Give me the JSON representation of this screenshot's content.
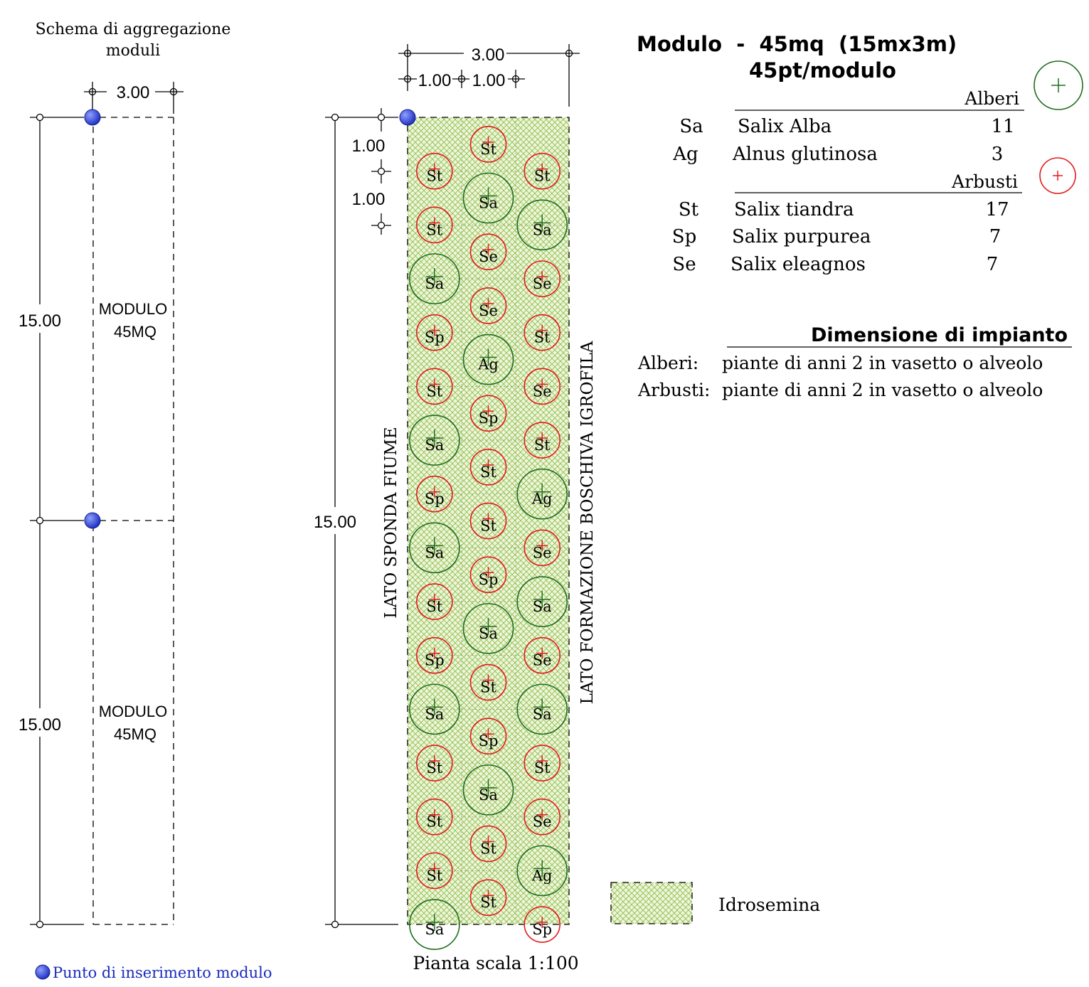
{
  "colors": {
    "tree": "#1e6e1e",
    "shrub": "#e31a1a",
    "insertion_point": "#2233cc",
    "hatch": "#8fbf4a",
    "hatch_bg": "#eef5dc",
    "line": "#000000"
  },
  "aggregation": {
    "title_line1": "Schema di aggregazione",
    "title_line2": "moduli",
    "width_dim": "3.00",
    "module_dims": [
      "15.00",
      "15.00"
    ],
    "module_label_line1": "MODULO",
    "module_label_line2": "45MQ"
  },
  "plan": {
    "dim_total": "3.00",
    "dim_col1": "1.00",
    "dim_col2": "1.00",
    "dim_row1": "1.00",
    "dim_row2": "1.00",
    "dim_length": "15.00",
    "side_left": "LATO SPONDA FIUME",
    "side_right": "LATO FORMAZIONE BOSCHIVA IGROFILA",
    "caption": "Pianta scala 1:100",
    "plants": [
      {
        "col": 1,
        "row": 0,
        "code": "St",
        "kind": "shrub"
      },
      {
        "col": 0,
        "row": 0.5,
        "code": "St",
        "kind": "shrub"
      },
      {
        "col": 2,
        "row": 0.5,
        "code": "St",
        "kind": "shrub"
      },
      {
        "col": 1,
        "row": 1,
        "code": "Sa",
        "kind": "tree"
      },
      {
        "col": 0,
        "row": 1.5,
        "code": "St",
        "kind": "shrub"
      },
      {
        "col": 2,
        "row": 1.5,
        "code": "Sa",
        "kind": "tree"
      },
      {
        "col": 1,
        "row": 2,
        "code": "Se",
        "kind": "shrub"
      },
      {
        "col": 0,
        "row": 2.5,
        "code": "Sa",
        "kind": "tree"
      },
      {
        "col": 2,
        "row": 2.5,
        "code": "Se",
        "kind": "shrub"
      },
      {
        "col": 1,
        "row": 3,
        "code": "Se",
        "kind": "shrub"
      },
      {
        "col": 0,
        "row": 3.5,
        "code": "Sp",
        "kind": "shrub"
      },
      {
        "col": 2,
        "row": 3.5,
        "code": "St",
        "kind": "shrub"
      },
      {
        "col": 1,
        "row": 4,
        "code": "Ag",
        "kind": "tree"
      },
      {
        "col": 0,
        "row": 4.5,
        "code": "St",
        "kind": "shrub"
      },
      {
        "col": 2,
        "row": 4.5,
        "code": "Se",
        "kind": "shrub"
      },
      {
        "col": 1,
        "row": 5,
        "code": "Sp",
        "kind": "shrub"
      },
      {
        "col": 0,
        "row": 5.5,
        "code": "Sa",
        "kind": "tree"
      },
      {
        "col": 2,
        "row": 5.5,
        "code": "St",
        "kind": "shrub"
      },
      {
        "col": 1,
        "row": 6,
        "code": "St",
        "kind": "shrub"
      },
      {
        "col": 0,
        "row": 6.5,
        "code": "Sp",
        "kind": "shrub"
      },
      {
        "col": 2,
        "row": 6.5,
        "code": "Ag",
        "kind": "tree"
      },
      {
        "col": 1,
        "row": 7,
        "code": "St",
        "kind": "shrub"
      },
      {
        "col": 0,
        "row": 7.5,
        "code": "Sa",
        "kind": "tree"
      },
      {
        "col": 2,
        "row": 7.5,
        "code": "Se",
        "kind": "shrub"
      },
      {
        "col": 1,
        "row": 8,
        "code": "Sp",
        "kind": "shrub"
      },
      {
        "col": 0,
        "row": 8.5,
        "code": "St",
        "kind": "shrub"
      },
      {
        "col": 2,
        "row": 8.5,
        "code": "Sa",
        "kind": "tree"
      },
      {
        "col": 1,
        "row": 9,
        "code": "Sa",
        "kind": "tree"
      },
      {
        "col": 0,
        "row": 9.5,
        "code": "Sp",
        "kind": "shrub"
      },
      {
        "col": 2,
        "row": 9.5,
        "code": "Se",
        "kind": "shrub"
      },
      {
        "col": 1,
        "row": 10,
        "code": "St",
        "kind": "shrub"
      },
      {
        "col": 0,
        "row": 10.5,
        "code": "Sa",
        "kind": "tree"
      },
      {
        "col": 2,
        "row": 10.5,
        "code": "Sa",
        "kind": "tree"
      },
      {
        "col": 1,
        "row": 11,
        "code": "Sp",
        "kind": "shrub"
      },
      {
        "col": 0,
        "row": 11.5,
        "code": "St",
        "kind": "shrub"
      },
      {
        "col": 2,
        "row": 11.5,
        "code": "St",
        "kind": "shrub"
      },
      {
        "col": 1,
        "row": 12,
        "code": "Sa",
        "kind": "tree"
      },
      {
        "col": 0,
        "row": 12.5,
        "code": "St",
        "kind": "shrub"
      },
      {
        "col": 2,
        "row": 12.5,
        "code": "Se",
        "kind": "shrub"
      },
      {
        "col": 1,
        "row": 13,
        "code": "St",
        "kind": "shrub"
      },
      {
        "col": 0,
        "row": 13.5,
        "code": "St",
        "kind": "shrub"
      },
      {
        "col": 2,
        "row": 13.5,
        "code": "Ag",
        "kind": "tree"
      },
      {
        "col": 1,
        "row": 14,
        "code": "St",
        "kind": "shrub"
      },
      {
        "col": 0,
        "row": 14.5,
        "code": "Sa",
        "kind": "tree"
      },
      {
        "col": 2,
        "row": 14.5,
        "code": "Sp",
        "kind": "shrub"
      }
    ]
  },
  "module_info": {
    "title": "Modulo  -  45mq  (15mx3m)",
    "subtitle": "45pt/modulo",
    "trees_header": "Alberi",
    "shrubs_header": "Arbusti",
    "trees": [
      {
        "code": "Sa",
        "name": "Salix Alba",
        "count": "11"
      },
      {
        "code": "Ag",
        "name": "Alnus glutinosa",
        "count": "3"
      }
    ],
    "shrubs": [
      {
        "code": "St",
        "name": "Salix tiandra",
        "count": "17"
      },
      {
        "code": "Sp",
        "name": "Salix purpurea",
        "count": "7"
      },
      {
        "code": "Se",
        "name": "Salix eleagnos",
        "count": "7"
      }
    ]
  },
  "dimension": {
    "title": "Dimensione di impianto",
    "rows": [
      {
        "label": "Alberi:",
        "text": "piante di anni 2 in vasetto o alveolo"
      },
      {
        "label": "Arbusti:",
        "text": "piante di anni 2 in vasetto o alveolo"
      }
    ]
  },
  "legend": {
    "hydroseeding": "Idrosemina",
    "insertion_point": "Punto di inserimento modulo"
  }
}
